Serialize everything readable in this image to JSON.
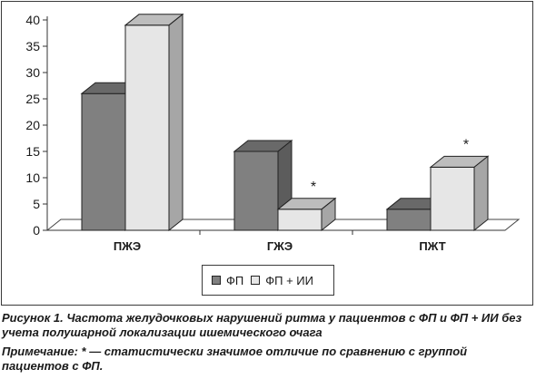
{
  "chart_data": {
    "type": "bar",
    "categories": [
      "ПЖЭ",
      "ГЖЭ",
      "ПЖТ"
    ],
    "series": [
      {
        "name": "ФП",
        "values": [
          26,
          15,
          4
        ],
        "color": "#808080"
      },
      {
        "name": "ФП + ИИ",
        "values": [
          39,
          4,
          12
        ],
        "color": "#e6e6e6"
      }
    ],
    "annotations": [
      {
        "category": "ГЖЭ",
        "series": "ФП + ИИ",
        "text": "*"
      },
      {
        "category": "ПЖТ",
        "series": "ФП + ИИ",
        "text": "*"
      }
    ],
    "ylim": [
      0,
      40
    ],
    "yticks": [
      0,
      5,
      10,
      15,
      20,
      25,
      30,
      35,
      40
    ],
    "grid": false,
    "legend_position": "bottom",
    "style": "3d"
  },
  "legend": {
    "items": [
      {
        "label": "ФП",
        "color": "#808080"
      },
      {
        "label": "ФП + ИИ",
        "color": "#e6e6e6"
      }
    ]
  },
  "caption": {
    "title": "Рисунок 1. Частота желудочковых нарушений ритма у пациентов с ФП и ФП + ИИ без учета полушарной локализации ишемического очага",
    "note": "Примечание: * — статистически значимое отличие по сравнению с группой пациентов с ФП."
  }
}
